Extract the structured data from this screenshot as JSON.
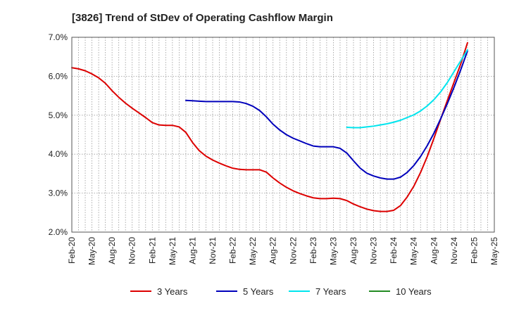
{
  "chart_data": {
    "type": "line",
    "title": "[3826]  Trend of StDev of Operating Cashflow Margin",
    "xlabel": "",
    "ylabel": "",
    "ylim": [
      0.02,
      0.07
    ],
    "yticks": [
      0.02,
      0.03,
      0.04,
      0.05,
      0.06,
      0.07
    ],
    "ytick_labels": [
      "2.0%",
      "3.0%",
      "4.0%",
      "5.0%",
      "6.0%",
      "7.0%"
    ],
    "x_start": "Feb-20",
    "x_end": "May-25",
    "xtick_labels": [
      "Feb-20",
      "May-20",
      "Aug-20",
      "Nov-20",
      "Feb-21",
      "May-21",
      "Aug-21",
      "Nov-21",
      "Feb-22",
      "May-22",
      "Aug-22",
      "Nov-22",
      "Feb-23",
      "May-23",
      "Aug-23",
      "Nov-23",
      "Feb-24",
      "May-24",
      "Aug-24",
      "Nov-24",
      "Feb-25",
      "May-25"
    ],
    "grid": true,
    "legend_position": "bottom",
    "series": [
      {
        "name": "3 Years",
        "color": "#dd0000",
        "points": [
          [
            "Feb-20",
            0.0622
          ],
          [
            "Mar-20",
            0.0619
          ],
          [
            "Apr-20",
            0.0614
          ],
          [
            "May-20",
            0.0606
          ],
          [
            "Jun-20",
            0.0596
          ],
          [
            "Jul-20",
            0.0582
          ],
          [
            "Aug-20",
            0.0563
          ],
          [
            "Sep-20",
            0.0546
          ],
          [
            "Oct-20",
            0.0531
          ],
          [
            "Nov-20",
            0.0518
          ],
          [
            "Dec-20",
            0.0506
          ],
          [
            "Jan-21",
            0.0494
          ],
          [
            "Feb-21",
            0.0481
          ],
          [
            "Mar-21",
            0.0475
          ],
          [
            "Apr-21",
            0.0474
          ],
          [
            "May-21",
            0.0474
          ],
          [
            "Jun-21",
            0.047
          ],
          [
            "Jul-21",
            0.0456
          ],
          [
            "Aug-21",
            0.043
          ],
          [
            "Sep-21",
            0.0409
          ],
          [
            "Oct-21",
            0.0395
          ],
          [
            "Nov-21",
            0.0385
          ],
          [
            "Dec-21",
            0.0377
          ],
          [
            "Jan-22",
            0.037
          ],
          [
            "Feb-22",
            0.0364
          ],
          [
            "Mar-22",
            0.0361
          ],
          [
            "Apr-22",
            0.036
          ],
          [
            "May-22",
            0.036
          ],
          [
            "Jun-22",
            0.036
          ],
          [
            "Jul-22",
            0.0354
          ],
          [
            "Aug-22",
            0.0339
          ],
          [
            "Sep-22",
            0.0326
          ],
          [
            "Oct-22",
            0.0315
          ],
          [
            "Nov-22",
            0.0306
          ],
          [
            "Dec-22",
            0.0299
          ],
          [
            "Jan-23",
            0.0293
          ],
          [
            "Feb-23",
            0.0288
          ],
          [
            "Mar-23",
            0.0286
          ],
          [
            "Apr-23",
            0.0286
          ],
          [
            "May-23",
            0.0287
          ],
          [
            "Jun-23",
            0.0286
          ],
          [
            "Jul-23",
            0.0281
          ],
          [
            "Aug-23",
            0.0272
          ],
          [
            "Sep-23",
            0.0265
          ],
          [
            "Oct-23",
            0.0259
          ],
          [
            "Nov-23",
            0.0255
          ],
          [
            "Dec-23",
            0.0253
          ],
          [
            "Jan-24",
            0.0253
          ],
          [
            "Feb-24",
            0.0256
          ],
          [
            "Mar-24",
            0.0268
          ],
          [
            "Apr-24",
            0.029
          ],
          [
            "May-24",
            0.0318
          ],
          [
            "Jun-24",
            0.0353
          ],
          [
            "Jul-24",
            0.0394
          ],
          [
            "Aug-24",
            0.0441
          ],
          [
            "Sep-24",
            0.049
          ],
          [
            "Oct-24",
            0.0538
          ],
          [
            "Nov-24",
            0.0585
          ],
          [
            "Dec-24",
            0.0632
          ],
          [
            "Jan-25",
            0.0686
          ]
        ]
      },
      {
        "name": "5 Years",
        "color": "#0000bb",
        "points": [
          [
            "Jul-21",
            0.0538
          ],
          [
            "Aug-21",
            0.0537
          ],
          [
            "Sep-21",
            0.0536
          ],
          [
            "Oct-21",
            0.0535
          ],
          [
            "Nov-21",
            0.0535
          ],
          [
            "Dec-21",
            0.0535
          ],
          [
            "Jan-22",
            0.0535
          ],
          [
            "Feb-22",
            0.0535
          ],
          [
            "Mar-22",
            0.0534
          ],
          [
            "Apr-22",
            0.053
          ],
          [
            "May-22",
            0.0523
          ],
          [
            "Jun-22",
            0.0512
          ],
          [
            "Jul-22",
            0.0496
          ],
          [
            "Aug-22",
            0.0477
          ],
          [
            "Sep-22",
            0.0462
          ],
          [
            "Oct-22",
            0.045
          ],
          [
            "Nov-22",
            0.0441
          ],
          [
            "Dec-22",
            0.0434
          ],
          [
            "Jan-23",
            0.0427
          ],
          [
            "Feb-23",
            0.0421
          ],
          [
            "Mar-23",
            0.0419
          ],
          [
            "Apr-23",
            0.0419
          ],
          [
            "May-23",
            0.0419
          ],
          [
            "Jun-23",
            0.0415
          ],
          [
            "Jul-23",
            0.0403
          ],
          [
            "Aug-23",
            0.0383
          ],
          [
            "Sep-23",
            0.0364
          ],
          [
            "Oct-23",
            0.0351
          ],
          [
            "Nov-23",
            0.0344
          ],
          [
            "Dec-23",
            0.0339
          ],
          [
            "Jan-24",
            0.0336
          ],
          [
            "Feb-24",
            0.0336
          ],
          [
            "Mar-24",
            0.0341
          ],
          [
            "Apr-24",
            0.0353
          ],
          [
            "May-24",
            0.0371
          ],
          [
            "Jun-24",
            0.0394
          ],
          [
            "Jul-24",
            0.0422
          ],
          [
            "Aug-24",
            0.0454
          ],
          [
            "Sep-24",
            0.0491
          ],
          [
            "Oct-24",
            0.053
          ],
          [
            "Nov-24",
            0.0572
          ],
          [
            "Dec-24",
            0.0617
          ],
          [
            "Jan-25",
            0.0665
          ]
        ]
      },
      {
        "name": "7 Years",
        "color": "#00e5ee",
        "points": [
          [
            "Jul-23",
            0.0469
          ],
          [
            "Aug-23",
            0.0468
          ],
          [
            "Sep-23",
            0.0468
          ],
          [
            "Oct-23",
            0.047
          ],
          [
            "Nov-23",
            0.0472
          ],
          [
            "Dec-23",
            0.0475
          ],
          [
            "Jan-24",
            0.0478
          ],
          [
            "Feb-24",
            0.0482
          ],
          [
            "Mar-24",
            0.0487
          ],
          [
            "Apr-24",
            0.0494
          ],
          [
            "May-24",
            0.0501
          ],
          [
            "Jun-24",
            0.0511
          ],
          [
            "Jul-24",
            0.0524
          ],
          [
            "Aug-24",
            0.054
          ],
          [
            "Sep-24",
            0.056
          ],
          [
            "Oct-24",
            0.0584
          ],
          [
            "Nov-24",
            0.0612
          ],
          [
            "Dec-24",
            0.064
          ],
          [
            "Jan-25",
            0.0668
          ]
        ]
      },
      {
        "name": "10 Years",
        "color": "#228b22",
        "points": []
      }
    ]
  }
}
